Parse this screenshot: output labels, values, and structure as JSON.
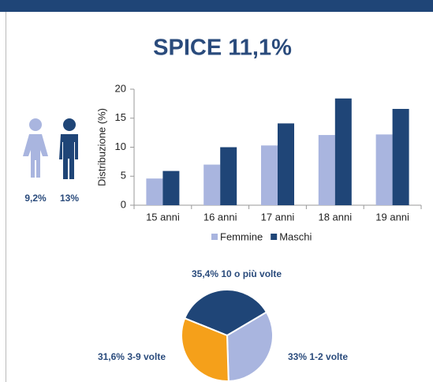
{
  "title": "SPICE 11,1%",
  "gender": {
    "values": [
      9.2,
      13
    ],
    "value_labels": [
      "9,2%",
      "13%"
    ],
    "colors": [
      "#a9b5df",
      "#1f4577"
    ]
  },
  "chart_data": [
    {
      "type": "bar",
      "ylabel": "Distribuzione (%)",
      "categories": [
        "15 anni",
        "16 anni",
        "17 anni",
        "18 anni",
        "19 anni"
      ],
      "series": [
        {
          "name": "Femmine",
          "color": "#a9b5df",
          "values": [
            4.6,
            7,
            10.3,
            12.1,
            12.2
          ]
        },
        {
          "name": "Maschi",
          "color": "#1f4577",
          "values": [
            5.9,
            10,
            14.1,
            18.4,
            16.6
          ]
        }
      ],
      "ylim": [
        0,
        20
      ],
      "yticks": [
        0,
        5,
        10,
        15,
        20
      ],
      "grid": false,
      "legend": "bottom"
    },
    {
      "type": "pie",
      "categories": [
        "10 o più volte",
        "1-2 volte",
        "3-9 volte"
      ],
      "values": [
        35.4,
        33,
        31.6
      ],
      "value_labels": [
        "35,4%",
        "33%",
        "31,6%"
      ],
      "colors": [
        "#1f4577",
        "#a9b5df",
        "#f5a01a"
      ]
    }
  ]
}
